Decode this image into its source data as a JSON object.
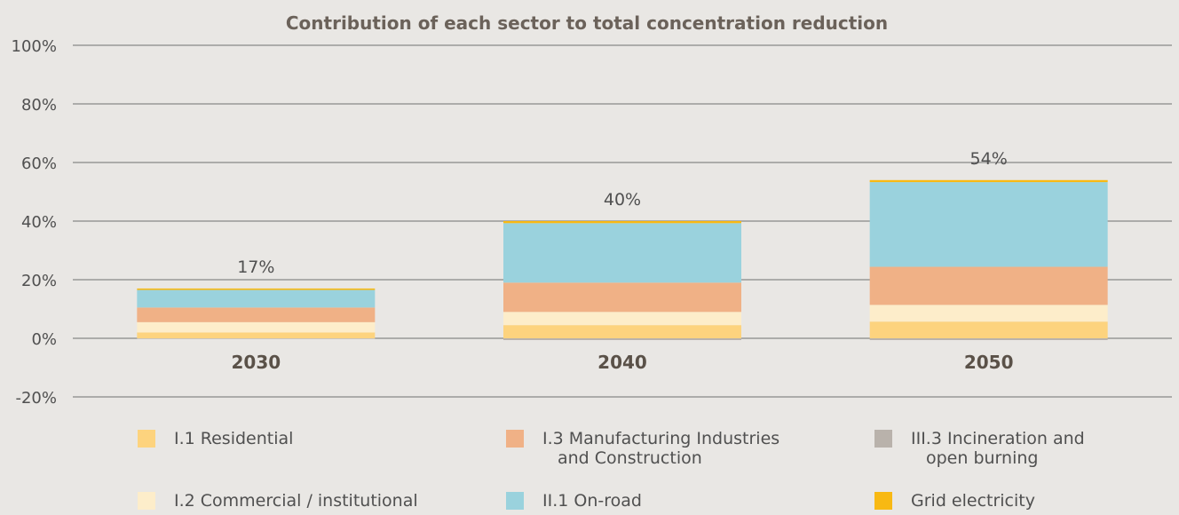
{
  "chart_data": {
    "type": "bar",
    "stacked": true,
    "title": "Contribution of each sector to total concentration reduction",
    "xlabel": "",
    "ylabel": "",
    "categories": [
      "2030",
      "2040",
      "2050"
    ],
    "totals": [
      "17%",
      "40%",
      "54%"
    ],
    "y_ticks": [
      "100%",
      "80%",
      "60%",
      "40%",
      "20%",
      "0%",
      "-20%"
    ],
    "ylim": [
      -20,
      100
    ],
    "grid": true,
    "legend_position": "bottom",
    "series": [
      {
        "name": "III.3 Incineration and open burning",
        "legend_lines": [
          "III.3 Incineration and",
          "open burning"
        ],
        "color": "#b9b2ab",
        "values": [
          -0.2,
          -0.6,
          -0.6
        ]
      },
      {
        "name": "I.1 Residential",
        "legend_lines": [
          "I.1 Residential"
        ],
        "color": "#fdd37e",
        "values": [
          2,
          4.5,
          5.7
        ]
      },
      {
        "name": "I.2 Commercial / institutional",
        "legend_lines": [
          "I.2 Commercial / institutional"
        ],
        "color": "#fdedca",
        "values": [
          3.5,
          4.5,
          5.7
        ]
      },
      {
        "name": "I.3 Manufacturing Industries and Construction",
        "legend_lines": [
          "I.3 Manufacturing Industries",
          "and Construction"
        ],
        "color": "#f0b186",
        "values": [
          5,
          10,
          13
        ]
      },
      {
        "name": "II.1 On-road",
        "legend_lines": [
          "II.1 On-road"
        ],
        "color": "#9ad2dd",
        "values": [
          6,
          20.3,
          28.9
        ]
      },
      {
        "name": "Grid electricity",
        "legend_lines": [
          "Grid electricity"
        ],
        "color": "#f8b913",
        "values": [
          0.5,
          0.7,
          0.7
        ]
      }
    ],
    "legend_order": [
      1,
      3,
      0,
      2,
      4,
      5
    ],
    "colors": {
      "axis_text": "#505050",
      "category_text": "#5a5148",
      "grid": "#707070"
    }
  }
}
